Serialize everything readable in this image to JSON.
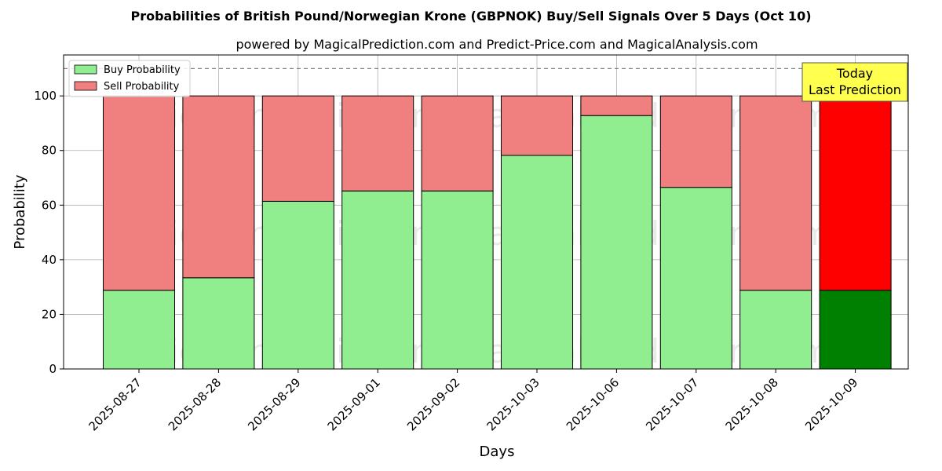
{
  "chart_data": {
    "type": "bar",
    "stacked": true,
    "title": "Probabilities of British Pound/Norwegian Krone (GBPNOK) Buy/Sell Signals Over 5 Days (Oct 10)",
    "subtitle": "powered by MagicalPrediction.com and Predict-Price.com and MagicalAnalysis.com",
    "xlabel": "Days",
    "ylabel": "Probability",
    "ylim": [
      0,
      115
    ],
    "yticks": [
      0,
      20,
      40,
      60,
      80,
      100
    ],
    "grid": true,
    "legend_position": "top-left",
    "reference_line": {
      "y": 110,
      "style": "dashed"
    },
    "categories": [
      "2025-08-27",
      "2025-08-28",
      "2025-08-29",
      "2025-09-01",
      "2025-09-02",
      "2025-10-03",
      "2025-10-06",
      "2025-10-07",
      "2025-10-08",
      "2025-10-09"
    ],
    "series": [
      {
        "name": "Buy Probability",
        "color": "#90ee90",
        "highlight_color": "#008000",
        "values": [
          28.8,
          33.4,
          61.4,
          65.2,
          65.2,
          78.2,
          92.8,
          66.5,
          28.8,
          28.8
        ]
      },
      {
        "name": "Sell Probability",
        "color": "#f08080",
        "highlight_color": "#ff0000",
        "values": [
          71.2,
          66.6,
          38.6,
          34.8,
          34.8,
          21.8,
          7.2,
          33.5,
          71.2,
          71.2
        ]
      }
    ],
    "highlight_index": 9,
    "annotation": {
      "lines": [
        "Today",
        "Last Prediction"
      ],
      "background": "#ffff4d"
    },
    "watermarks": [
      "MagicalAnalysis.com",
      "MagicalPrediction.com"
    ]
  }
}
